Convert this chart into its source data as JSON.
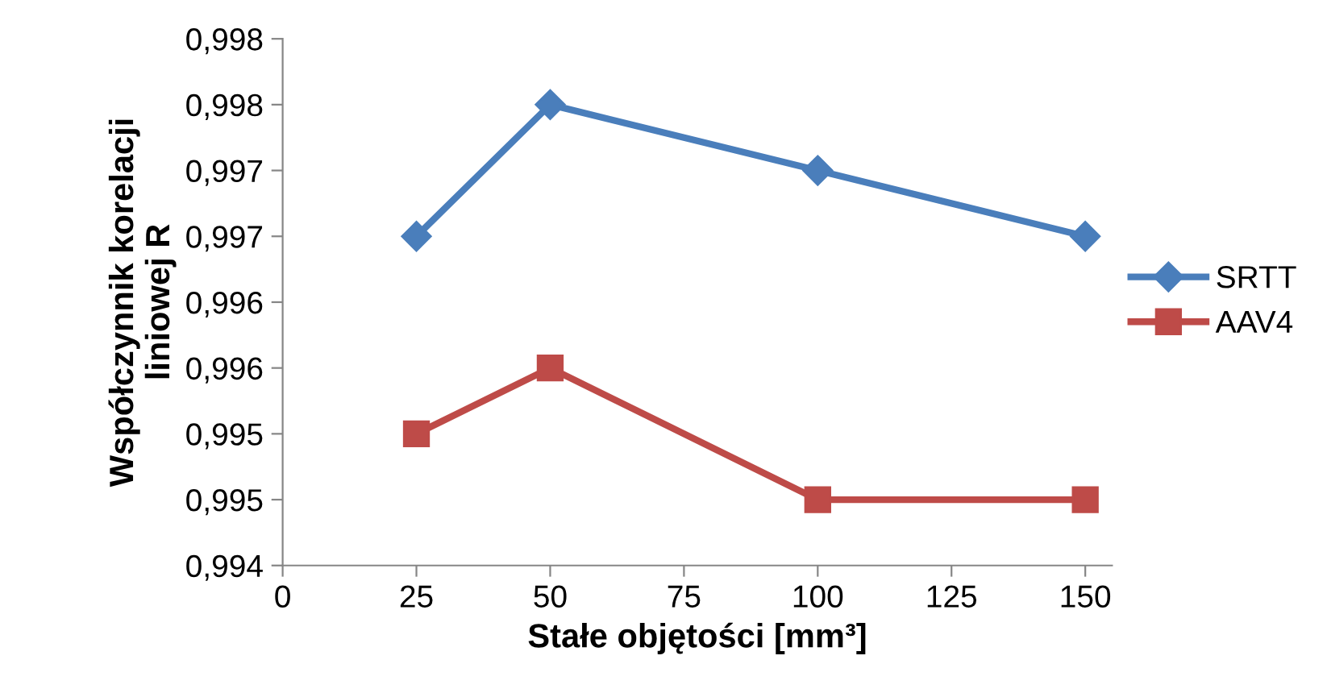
{
  "chart_data": {
    "type": "line",
    "xlabel": "Stałe objętości [mm³]",
    "ylabel": "Współczynnik korelacji\nliniowej R",
    "x": [
      25,
      50,
      100,
      150
    ],
    "series": [
      {
        "name": "SRTT",
        "color": "#4a7ebb",
        "marker": "diamond",
        "values": [
          0.9965,
          0.9975,
          0.997,
          0.9965
        ]
      },
      {
        "name": "AAV4",
        "color": "#be4b48",
        "marker": "square",
        "values": [
          0.995,
          0.9955,
          0.9945,
          0.9945
        ]
      }
    ],
    "xlim": [
      0,
      155
    ],
    "xticks": [
      0,
      25,
      50,
      75,
      100,
      125,
      150
    ],
    "ylim": [
      0.994,
      0.998
    ],
    "yticks": [
      {
        "value": 0.994,
        "label": "0,994"
      },
      {
        "value": 0.9945,
        "label": "0,995"
      },
      {
        "value": 0.995,
        "label": "0,995"
      },
      {
        "value": 0.9955,
        "label": "0,996"
      },
      {
        "value": 0.996,
        "label": "0,996"
      },
      {
        "value": 0.9965,
        "label": "0,997"
      },
      {
        "value": 0.997,
        "label": "0,997"
      },
      {
        "value": 0.9975,
        "label": "0,998"
      },
      {
        "value": 0.998,
        "label": "0,998"
      }
    ],
    "grid": false,
    "legend": "right",
    "line_style": "solid"
  }
}
